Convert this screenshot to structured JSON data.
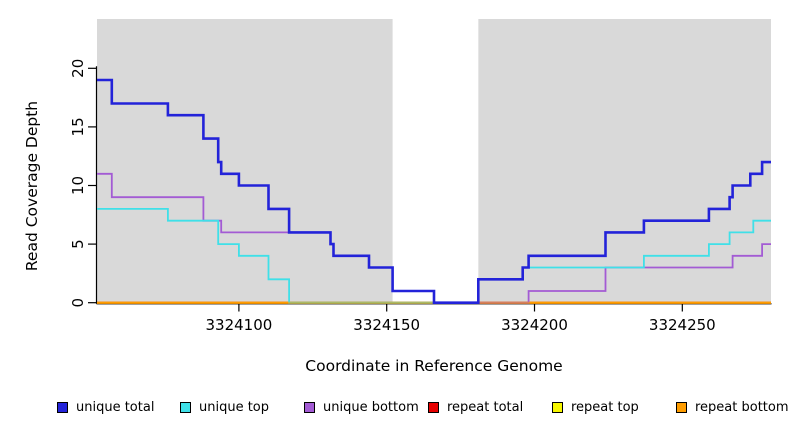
{
  "chart_data": {
    "type": "step",
    "title": "",
    "xlabel": "Coordinate in Reference Genome",
    "ylabel": "Read Coverage Depth",
    "xlim": [
      3324052,
      3324280
    ],
    "ylim": [
      0,
      24.2
    ],
    "x_ticks": [
      3324100,
      3324150,
      3324200,
      3324250
    ],
    "x_tick_labels": [
      "3324100",
      "3324150",
      "3324200",
      "3324250"
    ],
    "y_ticks": [
      0,
      5,
      10,
      15,
      20
    ],
    "y_tick_labels": [
      "0",
      "5",
      "10",
      "15",
      "20"
    ],
    "grid": false,
    "plot_bg_color": "#d9d9d9",
    "axis_color": "#000000",
    "highlight_band": {
      "x0": 3324152,
      "x1": 3324181,
      "color": "#ffffff"
    },
    "legend_position": "bottom",
    "series": [
      {
        "name": "unique total",
        "color": "#2323d9",
        "line_width": 2.6,
        "points": [
          [
            3324052,
            19
          ],
          [
            3324057,
            17
          ],
          [
            3324076,
            16
          ],
          [
            3324088,
            14
          ],
          [
            3324093,
            12
          ],
          [
            3324094,
            11
          ],
          [
            3324100,
            10
          ],
          [
            3324110,
            8
          ],
          [
            3324117,
            6
          ],
          [
            3324131,
            5
          ],
          [
            3324132,
            4
          ],
          [
            3324144,
            3
          ],
          [
            3324152,
            1
          ],
          [
            3324166,
            0
          ],
          [
            3324181,
            2
          ],
          [
            3324196,
            3
          ],
          [
            3324198,
            4
          ],
          [
            3324224,
            6
          ],
          [
            3324237,
            7
          ],
          [
            3324259,
            8
          ],
          [
            3324266,
            9
          ],
          [
            3324267,
            10
          ],
          [
            3324273,
            11
          ],
          [
            3324277,
            12
          ]
        ]
      },
      {
        "name": "unique top",
        "color": "#3fe0e8",
        "line_width": 1.8,
        "points": [
          [
            3324052,
            8
          ],
          [
            3324076,
            7
          ],
          [
            3324093,
            5
          ],
          [
            3324100,
            4
          ],
          [
            3324110,
            2
          ],
          [
            3324117,
            0
          ],
          [
            3324181,
            2
          ],
          [
            3324196,
            3
          ],
          [
            3324237,
            4
          ],
          [
            3324259,
            5
          ],
          [
            3324266,
            6
          ],
          [
            3324274,
            7
          ]
        ]
      },
      {
        "name": "unique bottom",
        "color": "#a35bd4",
        "line_width": 1.8,
        "points": [
          [
            3324052,
            11
          ],
          [
            3324057,
            9
          ],
          [
            3324088,
            7
          ],
          [
            3324094,
            6
          ],
          [
            3324131,
            5
          ],
          [
            3324132,
            4
          ],
          [
            3324144,
            3
          ],
          [
            3324152,
            1
          ],
          [
            3324166,
            0
          ],
          [
            3324198,
            1
          ],
          [
            3324224,
            3
          ],
          [
            3324267,
            4
          ],
          [
            3324277,
            5
          ]
        ]
      },
      {
        "name": "repeat total",
        "color": "#e60000",
        "line_width": 1.8,
        "points": [
          [
            3324052,
            0
          ]
        ]
      },
      {
        "name": "repeat top",
        "color": "#f7f700",
        "line_width": 1.8,
        "points": [
          [
            3324052,
            0
          ]
        ]
      },
      {
        "name": "repeat bottom",
        "color": "#ff9d00",
        "line_width": 2,
        "points": [
          [
            3324052,
            0
          ]
        ]
      }
    ]
  }
}
